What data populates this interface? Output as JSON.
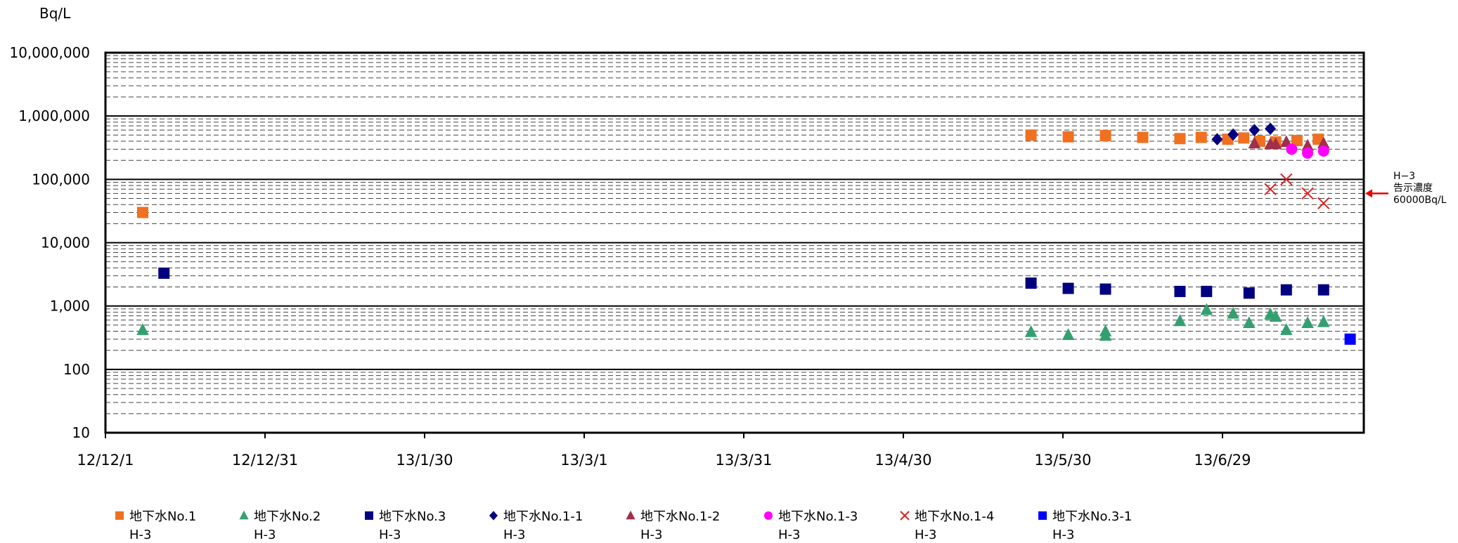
{
  "chart_data": {
    "type": "scatter",
    "y_unit_label": "Bq/L",
    "y_scale": "log",
    "ylim": [
      10,
      10000000
    ],
    "y_tick_labels": [
      "10,000,000",
      "1,000,000",
      "100,000",
      "10,000",
      "1,000",
      "100",
      "10"
    ],
    "y_tick_values": [
      10000000,
      1000000,
      100000,
      10000,
      1000,
      100,
      10
    ],
    "xlim": [
      "12/12/1",
      "13/7/28"
    ],
    "x_ticks": [
      {
        "label": "12/12/1",
        "date": "2012-12-01"
      },
      {
        "label": "12/12/31",
        "date": "2012-12-31"
      },
      {
        "label": "13/1/30",
        "date": "2013-01-30"
      },
      {
        "label": "13/3/1",
        "date": "2013-03-01"
      },
      {
        "label": "13/3/31",
        "date": "2013-03-31"
      },
      {
        "label": "13/4/30",
        "date": "2013-04-30"
      },
      {
        "label": "13/5/30",
        "date": "2013-05-30"
      },
      {
        "label": "13/6/29",
        "date": "2013-06-29"
      }
    ],
    "grid": "major solid, minor dashed",
    "legend_position": "bottom",
    "annotation": {
      "lines": [
        "H−3",
        "告示濃度",
        "60000Bq/L"
      ],
      "value": 60000,
      "arrow_color": "#e60000"
    },
    "series": [
      {
        "name": "地下水No.1",
        "sub": "H-3",
        "marker": "square",
        "color": "#f07020",
        "points": [
          [
            "2012-12-08",
            30000
          ],
          [
            "2013-05-24",
            500000
          ],
          [
            "2013-05-31",
            470000
          ],
          [
            "2013-06-07",
            490000
          ],
          [
            "2013-06-14",
            460000
          ],
          [
            "2013-06-21",
            440000
          ],
          [
            "2013-06-25",
            460000
          ],
          [
            "2013-06-30",
            430000
          ],
          [
            "2013-07-03",
            450000
          ],
          [
            "2013-07-06",
            400000
          ],
          [
            "2013-07-09",
            390000
          ],
          [
            "2013-07-13",
            410000
          ],
          [
            "2013-07-17",
            430000
          ]
        ]
      },
      {
        "name": "地下水No.2",
        "sub": "H-3",
        "marker": "triangle",
        "color": "#33a070",
        "points": [
          [
            "2012-12-08",
            420
          ],
          [
            "2013-05-24",
            390
          ],
          [
            "2013-05-31",
            350
          ],
          [
            "2013-06-07",
            340
          ],
          [
            "2013-06-07",
            400
          ],
          [
            "2013-06-21",
            580
          ],
          [
            "2013-06-26",
            870
          ],
          [
            "2013-07-01",
            760
          ],
          [
            "2013-07-04",
            540
          ],
          [
            "2013-07-08",
            740
          ],
          [
            "2013-07-09",
            680
          ],
          [
            "2013-07-11",
            420
          ],
          [
            "2013-07-15",
            540
          ],
          [
            "2013-07-18",
            560
          ]
        ]
      },
      {
        "name": "地下水No.3",
        "sub": "H-3",
        "marker": "square",
        "color": "#000080",
        "points": [
          [
            "2012-12-12",
            3300
          ],
          [
            "2013-05-24",
            2300
          ],
          [
            "2013-05-31",
            1900
          ],
          [
            "2013-06-07",
            1850
          ],
          [
            "2013-06-21",
            1700
          ],
          [
            "2013-06-26",
            1700
          ],
          [
            "2013-07-04",
            1600
          ],
          [
            "2013-07-11",
            1800
          ],
          [
            "2013-07-18",
            1800
          ]
        ]
      },
      {
        "name": "地下水No.1-1",
        "sub": "H-3",
        "marker": "diamond",
        "color": "#000080",
        "points": [
          [
            "2013-06-28",
            430000
          ],
          [
            "2013-07-01",
            510000
          ],
          [
            "2013-07-05",
            600000
          ],
          [
            "2013-07-08",
            630000
          ]
        ]
      },
      {
        "name": "地下水No.1-2",
        "sub": "H-3",
        "marker": "triangle",
        "color": "#a0304a",
        "points": [
          [
            "2013-07-05",
            370000
          ],
          [
            "2013-07-08",
            360000
          ],
          [
            "2013-07-09",
            360000
          ],
          [
            "2013-07-11",
            390000
          ],
          [
            "2013-07-15",
            340000
          ],
          [
            "2013-07-18",
            370000
          ]
        ]
      },
      {
        "name": "地下水No.1-3",
        "sub": "H-3",
        "marker": "circle",
        "color": "#ff00ff",
        "points": [
          [
            "2013-07-12",
            300000
          ],
          [
            "2013-07-15",
            260000
          ],
          [
            "2013-07-18",
            280000
          ]
        ]
      },
      {
        "name": "地下水No.1-4",
        "sub": "H-3",
        "marker": "x",
        "color": "#e02020",
        "points": [
          [
            "2013-07-08",
            70000
          ],
          [
            "2013-07-11",
            100000
          ],
          [
            "2013-07-15",
            60000
          ],
          [
            "2013-07-18",
            42000
          ]
        ]
      },
      {
        "name": "地下水No.3-1",
        "sub": "H-3",
        "marker": "square",
        "color": "#0000ff",
        "points": [
          [
            "2013-07-23",
            300
          ]
        ]
      }
    ]
  }
}
